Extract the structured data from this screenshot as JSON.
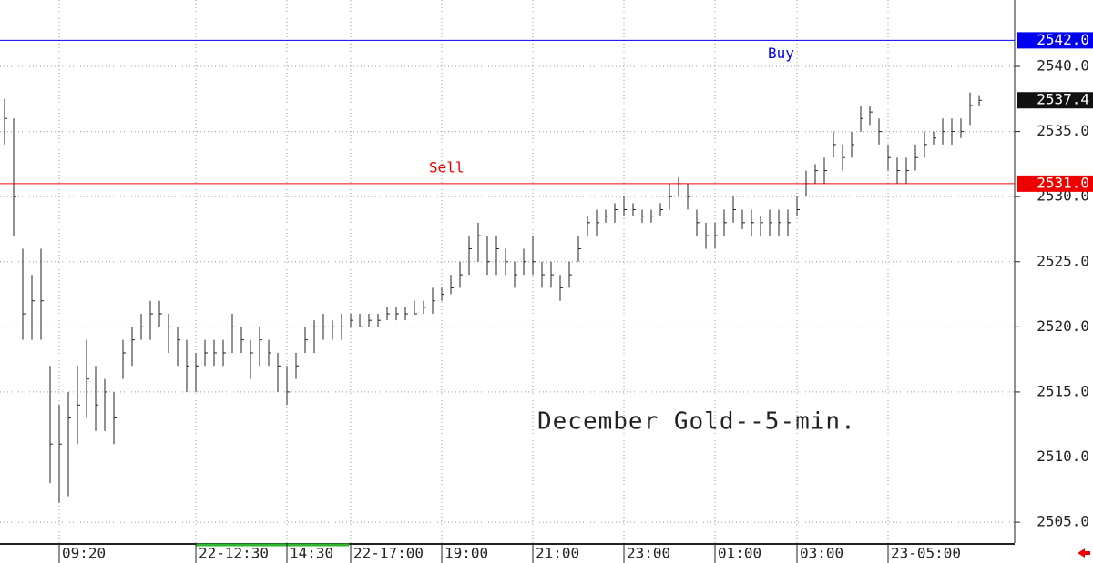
{
  "chart_data": {
    "type": "ohlc",
    "title": "December Gold--5-min.",
    "categories": [
      null,
      null,
      null,
      null,
      null,
      null,
      "09:20",
      null,
      null,
      null,
      null,
      null,
      null,
      null,
      null,
      null,
      null,
      null,
      null,
      null,
      null,
      "22-12:30",
      null,
      null,
      null,
      null,
      null,
      null,
      null,
      null,
      null,
      "14:30",
      null,
      null,
      null,
      null,
      null,
      null,
      "22-17:00",
      null,
      null,
      null,
      null,
      null,
      null,
      null,
      null,
      null,
      "19:00",
      null,
      null,
      null,
      null,
      null,
      null,
      null,
      null,
      null,
      "21:00",
      null,
      null,
      null,
      null,
      null,
      null,
      null,
      null,
      null,
      "23:00",
      null,
      null,
      null,
      null,
      null,
      null,
      null,
      null,
      null,
      "01:00",
      null,
      null,
      null,
      null,
      null,
      null,
      null,
      null,
      "03:00",
      null,
      null,
      null,
      null,
      null,
      null,
      null,
      null,
      null,
      "23-05:00",
      null,
      null,
      null,
      null,
      null,
      null,
      null,
      null,
      null,
      null
    ],
    "series": [
      {
        "name": "High",
        "color": "#222222",
        "values": [
          2537.5,
          2536,
          2526,
          2524,
          2526,
          2517,
          2514,
          2515,
          2517,
          2519,
          2517,
          2516,
          2515,
          2519,
          2520,
          2521,
          2522,
          2522,
          2521,
          2520,
          2519,
          2518,
          2519,
          2519,
          2519,
          2521,
          2520,
          2519,
          2520,
          2519,
          2518,
          2517,
          2518,
          2520,
          2520.5,
          2521,
          2520.5,
          2521,
          2521,
          2521,
          2521,
          2521,
          2521.5,
          2521.5,
          2521.5,
          2522,
          2522,
          2523,
          2523,
          2524,
          2525,
          2527,
          2528,
          2527,
          2527,
          2526,
          2525,
          2526,
          2527,
          2525,
          2525,
          2524,
          2525,
          2527,
          2528.5,
          2529,
          2529,
          2529.5,
          2530,
          2529.5,
          2529,
          2529,
          2529.5,
          2531,
          2531.5,
          2531,
          2529,
          2528,
          2528,
          2529,
          2530,
          2529,
          2529,
          2528.5,
          2529,
          2529,
          2529,
          2530,
          2532,
          2532.5,
          2533,
          2535,
          2534,
          2535,
          2537,
          2537,
          2536,
          2534,
          2533,
          2533,
          2534,
          2535,
          2535,
          2536,
          2536,
          2536,
          2538,
          2537.8
        ]
      },
      {
        "name": "Low",
        "color": "#222222",
        "values": [
          2534,
          2527,
          2519,
          2519,
          2519,
          2508,
          2506.5,
          2507,
          2511,
          2513,
          2512,
          2512,
          2511,
          2516,
          2517,
          2519,
          2519,
          2520,
          2518,
          2517,
          2515,
          2515,
          2517,
          2517,
          2517,
          2518,
          2518,
          2516,
          2517,
          2517,
          2515,
          2514,
          2516,
          2518,
          2518,
          2519,
          2519,
          2519,
          2520,
          2520,
          2520,
          2520,
          2520.5,
          2520.5,
          2520.5,
          2521,
          2521,
          2521,
          2522,
          2522.5,
          2523,
          2524,
          2525,
          2524,
          2524,
          2524,
          2523,
          2524,
          2524,
          2523,
          2523,
          2522,
          2523,
          2525,
          2527,
          2527,
          2528,
          2528,
          2528.5,
          2528.5,
          2528,
          2528,
          2528.5,
          2529,
          2530,
          2529,
          2527,
          2526,
          2526,
          2527,
          2528,
          2527.5,
          2527,
          2527,
          2527,
          2527,
          2527,
          2528.5,
          2530,
          2531,
          2531,
          2533,
          2532,
          2533,
          2535,
          2535.5,
          2534,
          2532,
          2531,
          2531,
          2532,
          2533,
          2534,
          2534,
          2534,
          2534.5,
          2535.5,
          2537
        ]
      },
      {
        "name": "Close",
        "color": "#222222",
        "values": [
          2536,
          2530,
          2521,
          2522,
          2522,
          2511,
          2511,
          2513,
          2514,
          2516,
          2514,
          2515,
          2513,
          2518,
          2519,
          2520,
          2521,
          2521,
          2520,
          2519,
          2517,
          2517,
          2518,
          2518,
          2518,
          2520,
          2519,
          2518,
          2519,
          2518,
          2517,
          2515,
          2517,
          2519,
          2520,
          2520,
          2520,
          2520,
          2520.5,
          2520,
          2520.5,
          2520.5,
          2521,
          2521,
          2521,
          2521,
          2521.5,
          2522,
          2522.5,
          2523,
          2524,
          2526,
          2527,
          2525,
          2526,
          2525,
          2524,
          2525,
          2525,
          2524,
          2524,
          2523,
          2524,
          2526,
          2528,
          2528,
          2528.5,
          2529,
          2529,
          2529,
          2528.5,
          2528.5,
          2529,
          2530,
          2531,
          2530,
          2528,
          2527,
          2527,
          2528,
          2529,
          2528,
          2528,
          2528,
          2528,
          2528,
          2528,
          2529,
          2531,
          2532,
          2532,
          2534,
          2533,
          2534,
          2536,
          2536.5,
          2535,
          2533,
          2532,
          2532,
          2533,
          2534,
          2534.5,
          2535,
          2535,
          2535,
          2537,
          2537.4
        ]
      }
    ],
    "last": 2537.4,
    "levels": [
      {
        "name": "Buy",
        "value": 2542,
        "value_label": "2542.0",
        "color": "#0000ee"
      },
      {
        "name": "Sell",
        "value": 2531,
        "value_label": "2531.0",
        "color": "#ee0000"
      }
    ],
    "ylim": [
      2503.4,
      2545.1
    ],
    "yticks": [
      {
        "value": 2505,
        "label": "2505.0"
      },
      {
        "value": 2510,
        "label": "2510.0"
      },
      {
        "value": 2515,
        "label": "2515.0"
      },
      {
        "value": 2520,
        "label": "2520.0"
      },
      {
        "value": 2525,
        "label": "2525.0"
      },
      {
        "value": 2530,
        "label": "2530.0"
      },
      {
        "value": 2535,
        "label": "2535.0"
      },
      {
        "value": 2540,
        "label": "2540.0"
      }
    ],
    "grid": true
  }
}
